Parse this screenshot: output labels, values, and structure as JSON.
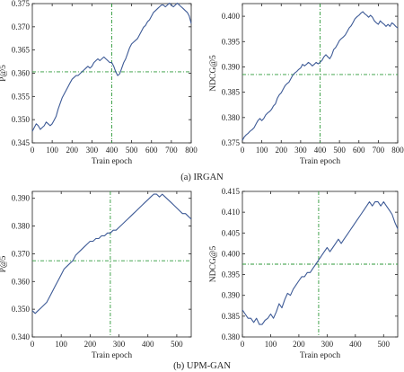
{
  "colors": {
    "line": "#3d5a96",
    "reference": "#2e9a3a",
    "axis": "#222222",
    "background": "#ffffff"
  },
  "captions": [
    "(a) IRGAN",
    "(b) UPM-GAN"
  ],
  "chart_data": [
    {
      "type": "line",
      "panel": "(a) IRGAN",
      "xlabel": "Train epoch",
      "ylabel": "P@5",
      "xlim": [
        0,
        800
      ],
      "ylim": [
        0.345,
        0.375
      ],
      "xticks": [
        0,
        100,
        200,
        300,
        400,
        500,
        600,
        700,
        800
      ],
      "yticks": [
        0.345,
        0.35,
        0.355,
        0.36,
        0.365,
        0.37,
        0.375
      ],
      "ytick_labels": [
        "0.345",
        "0.350",
        "0.355",
        "0.360",
        "0.365",
        "0.370",
        "0.375"
      ],
      "reference_lines": {
        "vertical_x": 400,
        "horizontal_y": 0.3603
      },
      "series": [
        {
          "x": [
            0,
            10,
            20,
            30,
            40,
            50,
            60,
            70,
            80,
            90,
            100,
            110,
            120,
            130,
            140,
            150,
            160,
            170,
            180,
            190,
            200,
            210,
            220,
            230,
            240,
            250,
            260,
            270,
            280,
            290,
            300,
            310,
            320,
            330,
            340,
            350,
            360,
            370,
            380,
            390,
            400,
            410,
            420,
            430,
            440,
            450,
            460,
            470,
            480,
            490,
            500,
            510,
            520,
            530,
            540,
            550,
            560,
            570,
            580,
            590,
            600,
            610,
            620,
            630,
            640,
            650,
            660,
            670,
            680,
            690,
            700,
            710,
            720,
            730,
            740,
            750,
            760,
            770,
            780,
            790,
            800
          ],
          "values": [
            0.3475,
            0.3483,
            0.3491,
            0.3487,
            0.3479,
            0.3483,
            0.3487,
            0.3495,
            0.3491,
            0.3487,
            0.3491,
            0.3499,
            0.3507,
            0.3523,
            0.3535,
            0.3547,
            0.3555,
            0.3563,
            0.3571,
            0.3579,
            0.3587,
            0.3591,
            0.3595,
            0.3595,
            0.3599,
            0.3603,
            0.3607,
            0.3611,
            0.3615,
            0.3611,
            0.3615,
            0.3623,
            0.3627,
            0.3631,
            0.3627,
            0.3631,
            0.3635,
            0.3631,
            0.3627,
            0.3623,
            0.3623,
            0.3615,
            0.3603,
            0.3595,
            0.3599,
            0.3611,
            0.3623,
            0.3631,
            0.3643,
            0.3655,
            0.3663,
            0.3667,
            0.3671,
            0.3675,
            0.3683,
            0.3691,
            0.3699,
            0.3703,
            0.3711,
            0.3715,
            0.3723,
            0.3731,
            0.3735,
            0.3739,
            0.3743,
            0.3747,
            0.3747,
            0.3743,
            0.3747,
            0.3751,
            0.3747,
            0.3743,
            0.3747,
            0.3751,
            0.3747,
            0.3743,
            0.3739,
            0.3735,
            0.3731,
            0.3723,
            0.3707
          ]
        }
      ]
    },
    {
      "type": "line",
      "panel": "(a) IRGAN",
      "xlabel": "Train epoch",
      "ylabel": "NDCG@5",
      "xlim": [
        0,
        800
      ],
      "ylim": [
        0.375,
        0.4025
      ],
      "xticks": [
        0,
        100,
        200,
        300,
        400,
        500,
        600,
        700,
        800
      ],
      "yticks": [
        0.375,
        0.38,
        0.385,
        0.39,
        0.395,
        0.4
      ],
      "ytick_labels": [
        "0.375",
        "0.380",
        "0.385",
        "0.390",
        "0.395",
        "0.400"
      ],
      "reference_lines": {
        "vertical_x": 400,
        "horizontal_y": 0.3885
      },
      "series": [
        {
          "x": [
            0,
            10,
            20,
            30,
            40,
            50,
            60,
            70,
            80,
            90,
            100,
            110,
            120,
            130,
            140,
            150,
            160,
            170,
            180,
            190,
            200,
            210,
            220,
            230,
            240,
            250,
            260,
            270,
            280,
            290,
            300,
            310,
            320,
            330,
            340,
            350,
            360,
            370,
            380,
            390,
            400,
            410,
            420,
            430,
            440,
            450,
            460,
            470,
            480,
            490,
            500,
            510,
            520,
            530,
            540,
            550,
            560,
            570,
            580,
            590,
            600,
            610,
            620,
            630,
            640,
            650,
            660,
            670,
            680,
            690,
            700,
            710,
            720,
            730,
            740,
            750,
            760,
            770,
            780,
            790,
            800
          ],
          "values": [
            0.3755,
            0.3762,
            0.3766,
            0.3769,
            0.3773,
            0.3776,
            0.378,
            0.3787,
            0.3794,
            0.3798,
            0.3794,
            0.3798,
            0.3805,
            0.3809,
            0.3812,
            0.3816,
            0.3823,
            0.3827,
            0.3838,
            0.3845,
            0.3849,
            0.3856,
            0.3863,
            0.3867,
            0.387,
            0.3877,
            0.3884,
            0.3888,
            0.3891,
            0.3895,
            0.3898,
            0.3905,
            0.3902,
            0.3905,
            0.3909,
            0.3906,
            0.3902,
            0.3905,
            0.3909,
            0.3906,
            0.3909,
            0.3913,
            0.392,
            0.3924,
            0.392,
            0.3916,
            0.3923,
            0.3934,
            0.3938,
            0.3945,
            0.3952,
            0.3956,
            0.3959,
            0.3963,
            0.397,
            0.3977,
            0.3981,
            0.3988,
            0.3995,
            0.3999,
            0.4002,
            0.4006,
            0.4009,
            0.4005,
            0.4002,
            0.3998,
            0.4002,
            0.3998,
            0.3991,
            0.3987,
            0.3984,
            0.3991,
            0.3987,
            0.3984,
            0.398,
            0.3984,
            0.398,
            0.3987,
            0.3984,
            0.398,
            0.3977
          ]
        }
      ]
    },
    {
      "type": "line",
      "panel": "(b) UPM-GAN",
      "xlabel": "Train epoch",
      "ylabel": "P@5",
      "xlim": [
        0,
        550
      ],
      "ylim": [
        0.34,
        0.3925
      ],
      "xticks": [
        0,
        100,
        200,
        300,
        400,
        500
      ],
      "yticks": [
        0.34,
        0.35,
        0.36,
        0.37,
        0.38,
        0.39
      ],
      "ytick_labels": [
        "0.340",
        "0.350",
        "0.360",
        "0.370",
        "0.380",
        "0.390"
      ],
      "reference_lines": {
        "vertical_x": 270,
        "horizontal_y": 0.3675
      },
      "series": [
        {
          "x": [
            0,
            10,
            20,
            30,
            40,
            50,
            60,
            70,
            80,
            90,
            100,
            110,
            120,
            130,
            140,
            150,
            160,
            170,
            180,
            190,
            200,
            210,
            220,
            230,
            240,
            250,
            260,
            270,
            280,
            290,
            300,
            310,
            320,
            330,
            340,
            350,
            360,
            370,
            380,
            390,
            400,
            410,
            420,
            430,
            440,
            450,
            460,
            470,
            480,
            490,
            500,
            510,
            520,
            530,
            540,
            550
          ],
          "values": [
            0.3495,
            0.3485,
            0.3495,
            0.3505,
            0.3515,
            0.3525,
            0.3545,
            0.3565,
            0.3585,
            0.3605,
            0.3625,
            0.3645,
            0.3655,
            0.3665,
            0.3675,
            0.3695,
            0.3705,
            0.3715,
            0.3725,
            0.3735,
            0.3745,
            0.3745,
            0.3755,
            0.3755,
            0.3765,
            0.3765,
            0.3775,
            0.3775,
            0.3785,
            0.3785,
            0.3795,
            0.3805,
            0.3815,
            0.3825,
            0.3835,
            0.3845,
            0.3855,
            0.3865,
            0.3875,
            0.3885,
            0.3895,
            0.3905,
            0.3915,
            0.3915,
            0.3905,
            0.3915,
            0.3905,
            0.3895,
            0.3885,
            0.3875,
            0.3865,
            0.3855,
            0.3845,
            0.3845,
            0.3835,
            0.3825
          ]
        }
      ]
    },
    {
      "type": "line",
      "panel": "(b) UPM-GAN",
      "xlabel": "Train epoch",
      "ylabel": "NDCG@5",
      "xlim": [
        0,
        550
      ],
      "ylim": [
        0.38,
        0.415
      ],
      "xticks": [
        0,
        100,
        200,
        300,
        400,
        500
      ],
      "yticks": [
        0.38,
        0.385,
        0.39,
        0.395,
        0.4,
        0.405,
        0.41,
        0.415
      ],
      "ytick_labels": [
        "0.380",
        "0.385",
        "0.390",
        "0.395",
        "0.400",
        "0.405",
        "0.410",
        "0.415"
      ],
      "reference_lines": {
        "vertical_x": 270,
        "horizontal_y": 0.3975
      },
      "series": [
        {
          "x": [
            0,
            10,
            20,
            30,
            40,
            50,
            60,
            70,
            80,
            90,
            100,
            110,
            120,
            130,
            140,
            150,
            160,
            170,
            180,
            190,
            200,
            210,
            220,
            230,
            240,
            250,
            260,
            270,
            280,
            290,
            300,
            310,
            320,
            330,
            340,
            350,
            360,
            370,
            380,
            390,
            400,
            410,
            420,
            430,
            440,
            450,
            460,
            470,
            480,
            490,
            500,
            510,
            520,
            530,
            540,
            550
          ],
          "values": [
            0.3865,
            0.3855,
            0.3845,
            0.3845,
            0.3835,
            0.3845,
            0.383,
            0.383,
            0.384,
            0.3845,
            0.3855,
            0.3845,
            0.386,
            0.388,
            0.387,
            0.389,
            0.3905,
            0.39,
            0.3915,
            0.3925,
            0.3935,
            0.3945,
            0.3945,
            0.3955,
            0.3955,
            0.3965,
            0.3975,
            0.3985,
            0.3995,
            0.4005,
            0.4015,
            0.4005,
            0.4015,
            0.4025,
            0.4035,
            0.4025,
            0.4035,
            0.4045,
            0.4055,
            0.4065,
            0.4075,
            0.4085,
            0.4095,
            0.4105,
            0.4115,
            0.4125,
            0.4115,
            0.4125,
            0.4125,
            0.4115,
            0.4125,
            0.4115,
            0.4105,
            0.4095,
            0.4075,
            0.406
          ]
        }
      ]
    }
  ]
}
